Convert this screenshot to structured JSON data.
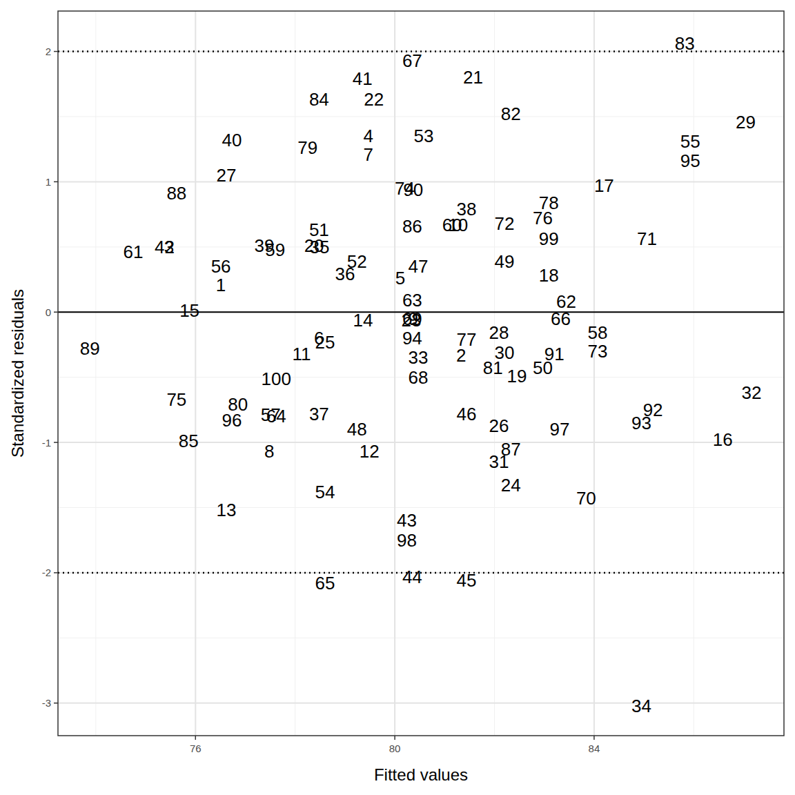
{
  "chart_data": {
    "type": "scatter",
    "marker": "text",
    "grid": true,
    "x_label": "Fitted values",
    "y_label": "Standardized residuals",
    "xlim": [
      73.24,
      87.81
    ],
    "ylim": [
      -3.25,
      2.31
    ],
    "xticks": [
      76,
      80,
      84
    ],
    "yticks": [
      -3,
      -2,
      -1,
      0,
      1,
      2
    ],
    "reference_lines": [
      {
        "value": 2,
        "line_style": "dotted"
      },
      {
        "value": 0,
        "line_style": "solid"
      },
      {
        "value": -2,
        "line_style": "dotted"
      }
    ],
    "labels": [
      "83",
      "67",
      "41",
      "21",
      "84",
      "22",
      "82",
      "29",
      "40",
      "4",
      "53",
      "79",
      "7",
      "55",
      "95",
      "27",
      "17",
      "88",
      "74",
      "90",
      "78",
      "38",
      "76",
      "72",
      "60",
      "10",
      "86",
      "51",
      "99",
      "71",
      "42",
      "3",
      "39",
      "20",
      "61",
      "59",
      "35",
      "52",
      "49",
      "56",
      "47",
      "36",
      "18",
      "5",
      "1",
      "63",
      "62",
      "15",
      "14",
      "69",
      "23",
      "9",
      "66",
      "58",
      "28",
      "89",
      "94",
      "77",
      "6",
      "25",
      "73",
      "11",
      "30",
      "91",
      "2",
      "33",
      "81",
      "50",
      "19",
      "68",
      "100",
      "32",
      "75",
      "80",
      "92",
      "46",
      "37",
      "57",
      "64",
      "96",
      "93",
      "26",
      "48",
      "97",
      "16",
      "85",
      "87",
      "8",
      "12",
      "31",
      "24",
      "54",
      "70",
      "13",
      "43",
      "98",
      "44",
      "45",
      "65",
      "34"
    ],
    "x": [
      85.82,
      80.35,
      79.35,
      81.57,
      78.48,
      79.58,
      82.33,
      87.04,
      76.73,
      79.47,
      80.58,
      78.25,
      79.47,
      85.93,
      85.93,
      76.62,
      84.2,
      75.62,
      80.2,
      80.37,
      83.09,
      81.44,
      82.97,
      82.2,
      81.15,
      81.27,
      80.35,
      78.48,
      83.09,
      85.06,
      75.38,
      75.47,
      77.38,
      78.38,
      74.75,
      77.6,
      78.49,
      79.24,
      82.2,
      76.51,
      80.47,
      79.0,
      83.09,
      80.11,
      76.51,
      80.35,
      83.44,
      75.88,
      79.36,
      80.35,
      80.33,
      80.37,
      83.33,
      84.07,
      82.09,
      73.88,
      80.35,
      81.44,
      78.48,
      78.6,
      84.07,
      78.13,
      82.2,
      83.2,
      81.33,
      80.47,
      81.97,
      82.97,
      82.45,
      80.47,
      77.62,
      87.16,
      75.62,
      76.85,
      85.18,
      81.44,
      78.48,
      77.51,
      77.62,
      76.73,
      84.95,
      82.09,
      79.24,
      83.31,
      86.58,
      75.86,
      82.33,
      77.48,
      79.49,
      82.09,
      82.33,
      78.6,
      83.84,
      76.62,
      80.24,
      80.24,
      80.35,
      81.44,
      78.6,
      84.95
    ],
    "values": [
      2.06,
      1.93,
      1.79,
      1.8,
      1.63,
      1.63,
      1.52,
      1.46,
      1.32,
      1.35,
      1.35,
      1.26,
      1.21,
      1.31,
      1.16,
      1.05,
      0.97,
      0.91,
      0.95,
      0.94,
      0.84,
      0.79,
      0.72,
      0.68,
      0.67,
      0.67,
      0.66,
      0.63,
      0.56,
      0.56,
      0.5,
      0.5,
      0.51,
      0.51,
      0.46,
      0.48,
      0.5,
      0.39,
      0.39,
      0.35,
      0.35,
      0.29,
      0.28,
      0.26,
      0.21,
      0.09,
      0.08,
      0.01,
      -0.06,
      -0.05,
      -0.06,
      -0.05,
      -0.05,
      -0.16,
      -0.16,
      -0.28,
      -0.2,
      -0.21,
      -0.2,
      -0.23,
      -0.3,
      -0.32,
      -0.31,
      -0.32,
      -0.33,
      -0.35,
      -0.43,
      -0.43,
      -0.49,
      -0.5,
      -0.51,
      -0.62,
      -0.67,
      -0.71,
      -0.75,
      -0.78,
      -0.78,
      -0.79,
      -0.8,
      -0.83,
      -0.85,
      -0.87,
      -0.9,
      -0.9,
      -0.98,
      -0.99,
      -1.05,
      -1.07,
      -1.07,
      -1.15,
      -1.33,
      -1.38,
      -1.43,
      -1.52,
      -1.6,
      -1.75,
      -2.03,
      -2.06,
      -2.08,
      -3.02
    ]
  }
}
